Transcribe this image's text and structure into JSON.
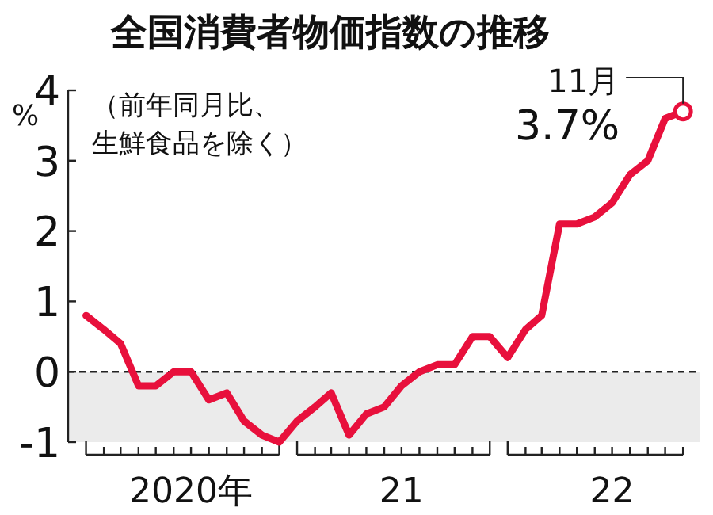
{
  "chart_data": {
    "type": "line",
    "title": "全国消費者物価指数の推移",
    "subtitle": "（前年同月比、生鮮食品を除く）",
    "ylabel": "%",
    "x": [
      "2020-01",
      "2020-02",
      "2020-03",
      "2020-04",
      "2020-05",
      "2020-06",
      "2020-07",
      "2020-08",
      "2020-09",
      "2020-10",
      "2020-11",
      "2020-12",
      "2021-01",
      "2021-02",
      "2021-03",
      "2021-04",
      "2021-05",
      "2021-06",
      "2021-07",
      "2021-08",
      "2021-09",
      "2021-10",
      "2021-11",
      "2021-12",
      "2022-01",
      "2022-02",
      "2022-03",
      "2022-04",
      "2022-05",
      "2022-06",
      "2022-07",
      "2022-08",
      "2022-09",
      "2022-10",
      "2022-11"
    ],
    "series": [
      {
        "color": "#e8103c",
        "marker": "none",
        "values": [
          0.8,
          0.6,
          0.4,
          -0.2,
          -0.2,
          0,
          0,
          -0.4,
          -0.3,
          -0.7,
          -0.9,
          -1.0,
          -0.7,
          -0.5,
          -0.3,
          -0.9,
          -0.6,
          -0.5,
          -0.2,
          0,
          0.1,
          0.1,
          0.5,
          0.5,
          0.2,
          0.6,
          0.8,
          2.1,
          2.1,
          2.2,
          2.4,
          2.8,
          3.0,
          3.6,
          3.7
        ]
      },
      {
        "type": "scatter",
        "color": "#e8103c",
        "marker": "circle",
        "x": [
          "2022-11"
        ],
        "values": [
          3.7
        ]
      }
    ],
    "xlim": [
      "2019-12",
      "2022-12"
    ],
    "xticks": [
      {
        "value": "2020-01",
        "label": null
      },
      {
        "value": "2020-02",
        "label": null
      },
      {
        "value": "2020-03",
        "label": null
      },
      {
        "value": "2020-04",
        "label": null
      },
      {
        "value": "2020-05",
        "label": null
      },
      {
        "value": "2020-06",
        "label": null
      },
      {
        "value": "2020-07",
        "label": null
      },
      {
        "value": "2020-08",
        "label": null
      },
      {
        "value": "2020-09",
        "label": null
      },
      {
        "value": "2020-10",
        "label": null
      },
      {
        "value": "2020-11",
        "label": null
      },
      {
        "value": "2020-12",
        "label": null
      },
      {
        "value": "2021-01",
        "label": null
      },
      {
        "value": "2021-02",
        "label": null
      },
      {
        "value": "2021-03",
        "label": null
      },
      {
        "value": "2021-04",
        "label": null
      },
      {
        "value": "2021-05",
        "label": null
      },
      {
        "value": "2021-06",
        "label": null
      },
      {
        "value": "2021-07",
        "label": null
      },
      {
        "value": "2021-08",
        "label": null
      },
      {
        "value": "2021-09",
        "label": null
      },
      {
        "value": "2021-10",
        "label": null
      },
      {
        "value": "2021-11",
        "label": null
      },
      {
        "value": "2021-12",
        "label": null
      },
      {
        "value": "2022-01",
        "label": null
      },
      {
        "value": "2022-02",
        "label": null
      },
      {
        "value": "2022-03",
        "label": null
      },
      {
        "value": "2022-04",
        "label": null
      },
      {
        "value": "2022-05",
        "label": null
      },
      {
        "value": "2022-06",
        "label": null
      },
      {
        "value": "2022-07",
        "label": null
      },
      {
        "value": "2022-08",
        "label": null
      },
      {
        "value": "2022-09",
        "label": null
      },
      {
        "value": "2022-10",
        "label": null
      },
      {
        "value": "2022-11",
        "label": null
      },
      {
        "value": "2020-07-01",
        "label": "2020年"
      },
      {
        "value": "2021-07-01",
        "label": "21"
      },
      {
        "value": "2022-07-01",
        "label": "22"
      }
    ],
    "ylim": [
      -1,
      4
    ],
    "yticks": [
      -1,
      0,
      1,
      2,
      3,
      4
    ],
    "grid": false,
    "bands": [
      {
        "axis": "y",
        "from": -1,
        "to": 0,
        "color": "#ebebeb"
      }
    ],
    "ref_lines": [
      {
        "axis": "y",
        "value": 0,
        "line_style": "dashed",
        "color": "#222222"
      }
    ],
    "annotations": [
      {
        "text": "11月\n3.7%",
        "x": "2022-11",
        "y": 3.7
      }
    ]
  }
}
